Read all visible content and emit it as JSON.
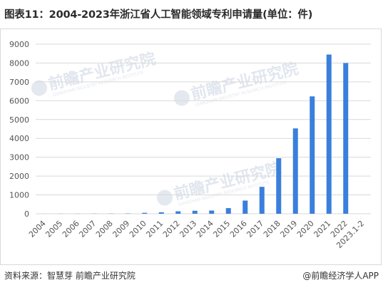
{
  "title": "图表11：2004-2023年浙江省人工智能领域专利申请量(单位：件)",
  "footer": {
    "source": "资料来源：智慧芽 前瞻产业研究院",
    "brand": "@前瞻经济学人APP",
    "brand_icon": "watermark-logo-icon"
  },
  "watermark": {
    "text": "前瞻产业研究院",
    "subtext": "QIANZHAN INDUSTRY RESEARCH INSTITUTE"
  },
  "colors": {
    "bar": "#3a7fdc",
    "grid": "#d9d9d9",
    "axis_text": "#555555"
  },
  "chart_data": {
    "type": "bar",
    "title": "",
    "xlabel": "",
    "ylabel": "",
    "ylim": [
      0,
      9000
    ],
    "yticks": [
      0,
      1000,
      2000,
      3000,
      4000,
      5000,
      6000,
      7000,
      8000,
      9000
    ],
    "grid": true,
    "legend": "none",
    "categories": [
      "2004",
      "2005",
      "2006",
      "2007",
      "2008",
      "2009",
      "2010",
      "2011",
      "2012",
      "2013",
      "2014",
      "2015",
      "2016",
      "2017",
      "2018",
      "2019",
      "2020",
      "2021",
      "2022",
      "2023.1-2"
    ],
    "values": [
      3,
      5,
      6,
      8,
      10,
      15,
      50,
      80,
      130,
      160,
      170,
      300,
      700,
      1430,
      2950,
      4530,
      6230,
      8450,
      8000,
      0
    ]
  }
}
